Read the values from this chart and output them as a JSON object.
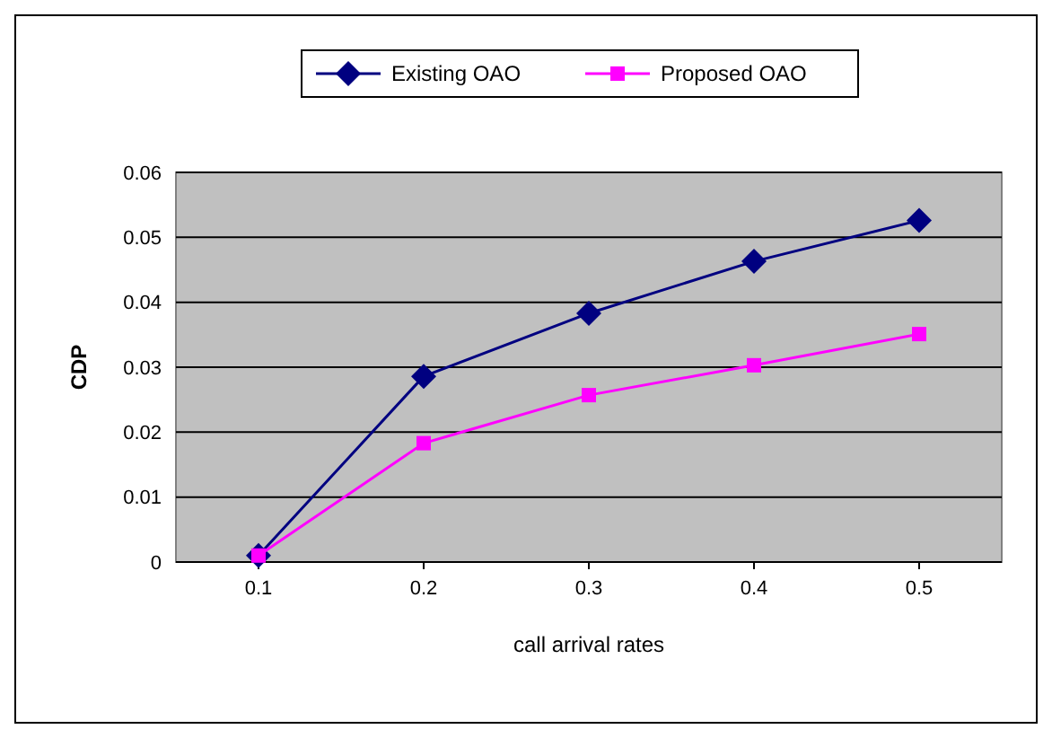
{
  "chart_data": {
    "type": "line",
    "xlabel": "call arrival rates",
    "ylabel": "CDP",
    "categories": [
      "0.1",
      "0.2",
      "0.3",
      "0.4",
      "0.5"
    ],
    "series": [
      {
        "name": "Existing OAO",
        "color": "#000080",
        "marker": "diamond",
        "values": [
          0.001,
          0.0286,
          0.0383,
          0.0463,
          0.0526
        ]
      },
      {
        "name": "Proposed OAO",
        "color": "#ff00ff",
        "marker": "square",
        "values": [
          0.001,
          0.0183,
          0.0257,
          0.0303,
          0.0351
        ]
      }
    ],
    "ylim": [
      0,
      0.06
    ],
    "yticks": [
      0,
      0.01,
      0.02,
      0.03,
      0.04,
      0.05,
      0.06
    ],
    "grid": "y",
    "legend": "top"
  }
}
